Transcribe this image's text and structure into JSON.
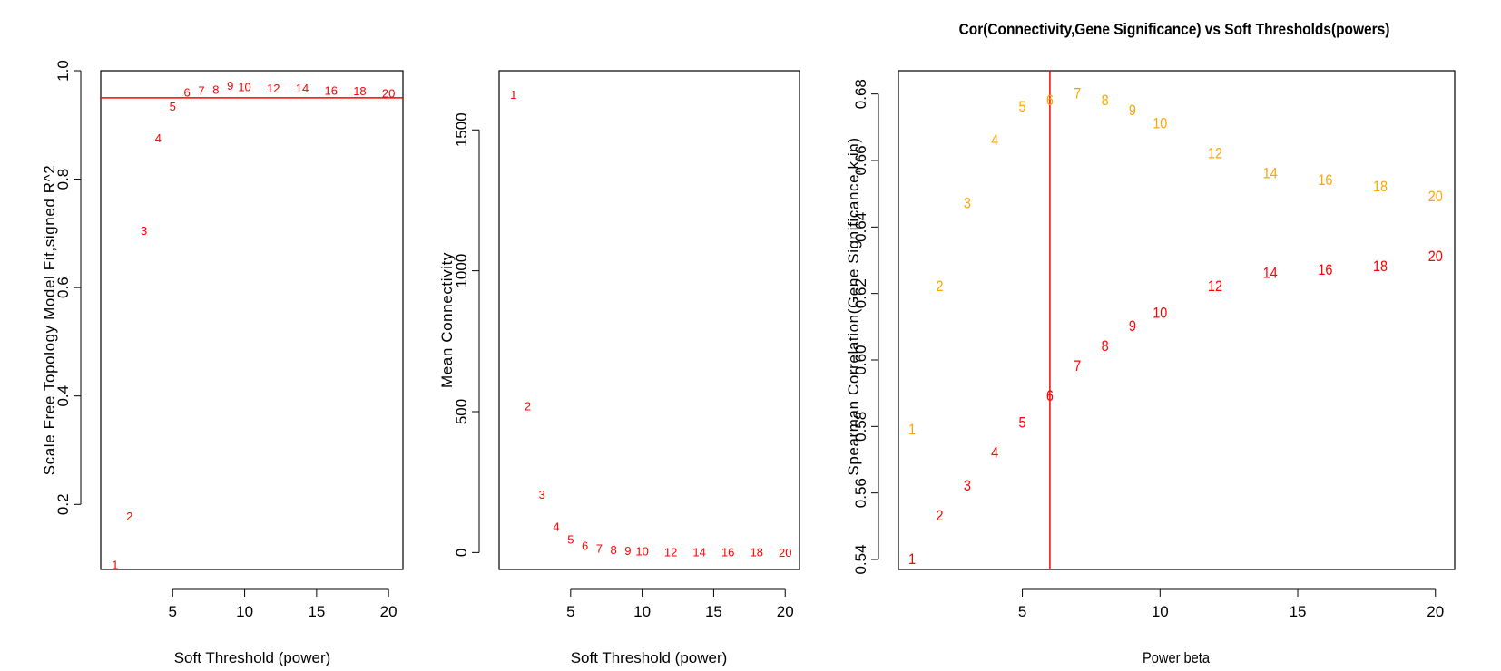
{
  "colors": {
    "red": "#ff0000",
    "orange": "#ffa500",
    "axis": "#000000"
  },
  "chart_data": [
    {
      "type": "scatter",
      "title": "",
      "xlabel": "Soft Threshold (power)",
      "ylabel": "Scale Free Topology Model Fit,signed R^2",
      "xlim": [
        0,
        21
      ],
      "ylim": [
        0.08,
        1.0
      ],
      "xticks": [
        5,
        10,
        15,
        20
      ],
      "yticks": [
        0.2,
        0.4,
        0.6,
        0.8,
        1.0
      ],
      "ytick_labels": [
        "0.2",
        "0.4",
        "0.6",
        "0.8",
        "1.0"
      ],
      "points_as_text_labels": true,
      "x": [
        1,
        2,
        3,
        4,
        5,
        6,
        7,
        8,
        9,
        10,
        12,
        14,
        16,
        18,
        20
      ],
      "y": [
        0.088,
        0.178,
        0.705,
        0.875,
        0.934,
        0.96,
        0.963,
        0.965,
        0.972,
        0.97,
        0.967,
        0.967,
        0.963,
        0.962,
        0.958
      ],
      "labels": [
        "1",
        "2",
        "3",
        "4",
        "5",
        "6",
        "7",
        "8",
        "9",
        "10",
        "12",
        "14",
        "16",
        "18",
        "20"
      ],
      "hline": 0.95,
      "color": "#ff0000"
    },
    {
      "type": "scatter",
      "title": "",
      "xlabel": "Soft Threshold (power)",
      "ylabel": "Mean Connectivity",
      "xlim": [
        0,
        21
      ],
      "ylim": [
        -60,
        1710
      ],
      "xticks": [
        5,
        10,
        15,
        20
      ],
      "yticks": [
        0,
        500,
        1000,
        1500
      ],
      "ytick_labels": [
        "0",
        "500",
        "1000",
        "1500"
      ],
      "points_as_text_labels": true,
      "x": [
        1,
        2,
        3,
        4,
        5,
        6,
        7,
        8,
        9,
        10,
        12,
        14,
        16,
        18,
        20
      ],
      "y": [
        1625,
        520,
        205,
        92,
        46,
        24,
        14,
        9,
        6,
        4,
        1,
        1,
        1,
        1,
        0
      ],
      "labels": [
        "1",
        "2",
        "3",
        "4",
        "5",
        "6",
        "7",
        "8",
        "9",
        "10",
        "12",
        "14",
        "16",
        "18",
        "20"
      ],
      "color": "#ff0000"
    },
    {
      "type": "scatter",
      "title": "Cor(Connectivity,Gene Significance) vs Soft Thresholds(powers)",
      "xlabel": "Power beta",
      "ylabel": "Spearman Correlation(Gene Significance,k.in)",
      "xlim": [
        0.5,
        20.7
      ],
      "ylim": [
        0.537,
        0.687
      ],
      "xticks": [
        5,
        10,
        15,
        20
      ],
      "yticks": [
        0.54,
        0.56,
        0.58,
        0.6,
        0.62,
        0.64,
        0.66,
        0.68
      ],
      "ytick_labels": [
        "0.54",
        "0.56",
        "0.58",
        "0.60",
        "0.62",
        "0.64",
        "0.66",
        "0.68"
      ],
      "points_as_text_labels": true,
      "vline": 6,
      "series": [
        {
          "color": "#ffa500",
          "x": [
            1,
            2,
            3,
            4,
            5,
            6,
            7,
            8,
            9,
            10,
            12,
            14,
            16,
            18,
            20
          ],
          "y": [
            0.579,
            0.622,
            0.647,
            0.666,
            0.676,
            0.678,
            0.68,
            0.678,
            0.675,
            0.671,
            0.662,
            0.656,
            0.654,
            0.652,
            0.649
          ],
          "labels": [
            "1",
            "2",
            "3",
            "4",
            "5",
            "6",
            "7",
            "8",
            "9",
            "10",
            "12",
            "14",
            "16",
            "18",
            "20"
          ]
        },
        {
          "color": "#ff0000",
          "x": [
            1,
            2,
            3,
            4,
            5,
            6,
            7,
            8,
            9,
            10,
            12,
            14,
            16,
            18,
            20
          ],
          "y": [
            0.54,
            0.553,
            0.562,
            0.572,
            0.581,
            0.589,
            0.598,
            0.604,
            0.61,
            0.614,
            0.622,
            0.626,
            0.627,
            0.628,
            0.631
          ],
          "labels": [
            "1",
            "2",
            "3",
            "4",
            "5",
            "6",
            "7",
            "8",
            "9",
            "10",
            "12",
            "14",
            "16",
            "18",
            "20"
          ]
        }
      ]
    }
  ]
}
